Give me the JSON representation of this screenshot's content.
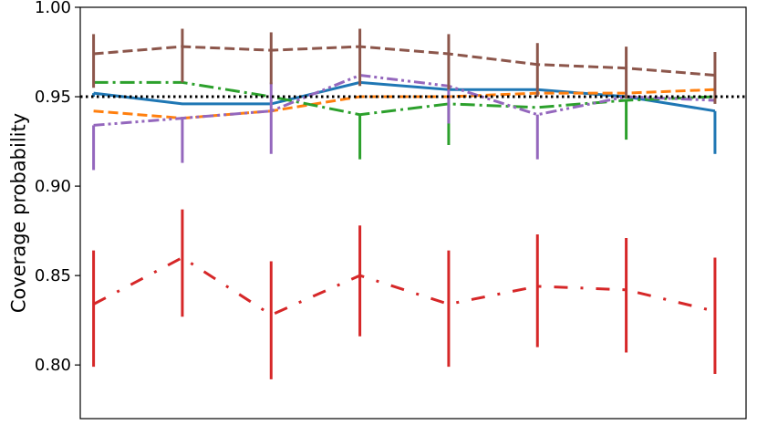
{
  "chart_data": {
    "type": "line",
    "title": "",
    "xlabel": "",
    "ylabel": "Coverage probability",
    "ylim": [
      0.77,
      1.0
    ],
    "yticks": [
      "1.00",
      "0.95",
      "0.90",
      "0.85",
      "0.80"
    ],
    "ytick_values": [
      1.0,
      0.95,
      0.9,
      0.85,
      0.8
    ],
    "x": [
      1,
      2,
      3,
      4,
      5,
      6,
      7,
      8
    ],
    "xlim": [
      0.85,
      8.35
    ],
    "reference_line": {
      "y": 0.95,
      "color": "#000000",
      "style": "dotted"
    },
    "grid": false,
    "legend": "none",
    "series": [
      {
        "color": "#1f77b4",
        "style": "solid",
        "values": [
          0.952,
          0.946,
          0.946,
          0.958,
          0.954,
          0.954,
          0.95,
          0.942
        ],
        "err_low": [
          0.95,
          0.946,
          0.946,
          0.958,
          0.954,
          0.954,
          0.95,
          0.918
        ],
        "err_high": [
          0.952,
          0.946,
          0.946,
          0.958,
          0.954,
          0.954,
          0.95,
          0.942
        ]
      },
      {
        "color": "#ff7f0e",
        "style": "dashed",
        "values": [
          0.942,
          0.938,
          0.942,
          0.95,
          0.95,
          0.952,
          0.952,
          0.954
        ],
        "err_low": [
          0.942,
          0.938,
          0.942,
          0.95,
          0.95,
          0.952,
          0.952,
          0.954
        ],
        "err_high": [
          0.942,
          0.938,
          0.942,
          0.95,
          0.95,
          0.952,
          0.952,
          0.954
        ]
      },
      {
        "color": "#2ca02c",
        "style": "dashdot",
        "values": [
          0.958,
          0.958,
          0.95,
          0.94,
          0.946,
          0.944,
          0.948,
          0.95
        ],
        "err_low": [
          0.958,
          0.958,
          0.95,
          0.915,
          0.923,
          0.944,
          0.926,
          0.95
        ],
        "err_high": [
          0.958,
          0.958,
          0.95,
          0.94,
          0.946,
          0.944,
          0.948,
          0.95
        ]
      },
      {
        "color": "#d62728",
        "style": "dashdot-loose",
        "values": [
          0.834,
          0.86,
          0.828,
          0.85,
          0.834,
          0.844,
          0.842,
          0.83
        ],
        "err_low": [
          0.799,
          0.827,
          0.792,
          0.816,
          0.799,
          0.81,
          0.807,
          0.795
        ],
        "err_high": [
          0.864,
          0.887,
          0.858,
          0.878,
          0.864,
          0.873,
          0.871,
          0.86
        ]
      },
      {
        "color": "#9467bd",
        "style": "dashdotdot",
        "values": [
          0.934,
          0.938,
          0.942,
          0.962,
          0.956,
          0.94,
          0.95,
          0.948
        ],
        "err_low": [
          0.909,
          0.913,
          0.918,
          0.962,
          0.935,
          0.915,
          0.95,
          0.948
        ],
        "err_high": [
          0.934,
          0.938,
          0.958,
          0.962,
          0.956,
          0.94,
          0.95,
          0.948
        ]
      },
      {
        "color": "#8c564b",
        "style": "dashed",
        "values": [
          0.974,
          0.978,
          0.976,
          0.978,
          0.974,
          0.968,
          0.966,
          0.962
        ],
        "err_low": [
          0.955,
          0.958,
          0.957,
          0.956,
          0.954,
          0.95,
          0.949,
          0.946
        ],
        "err_high": [
          0.985,
          0.988,
          0.986,
          0.988,
          0.985,
          0.98,
          0.978,
          0.975
        ]
      }
    ]
  }
}
